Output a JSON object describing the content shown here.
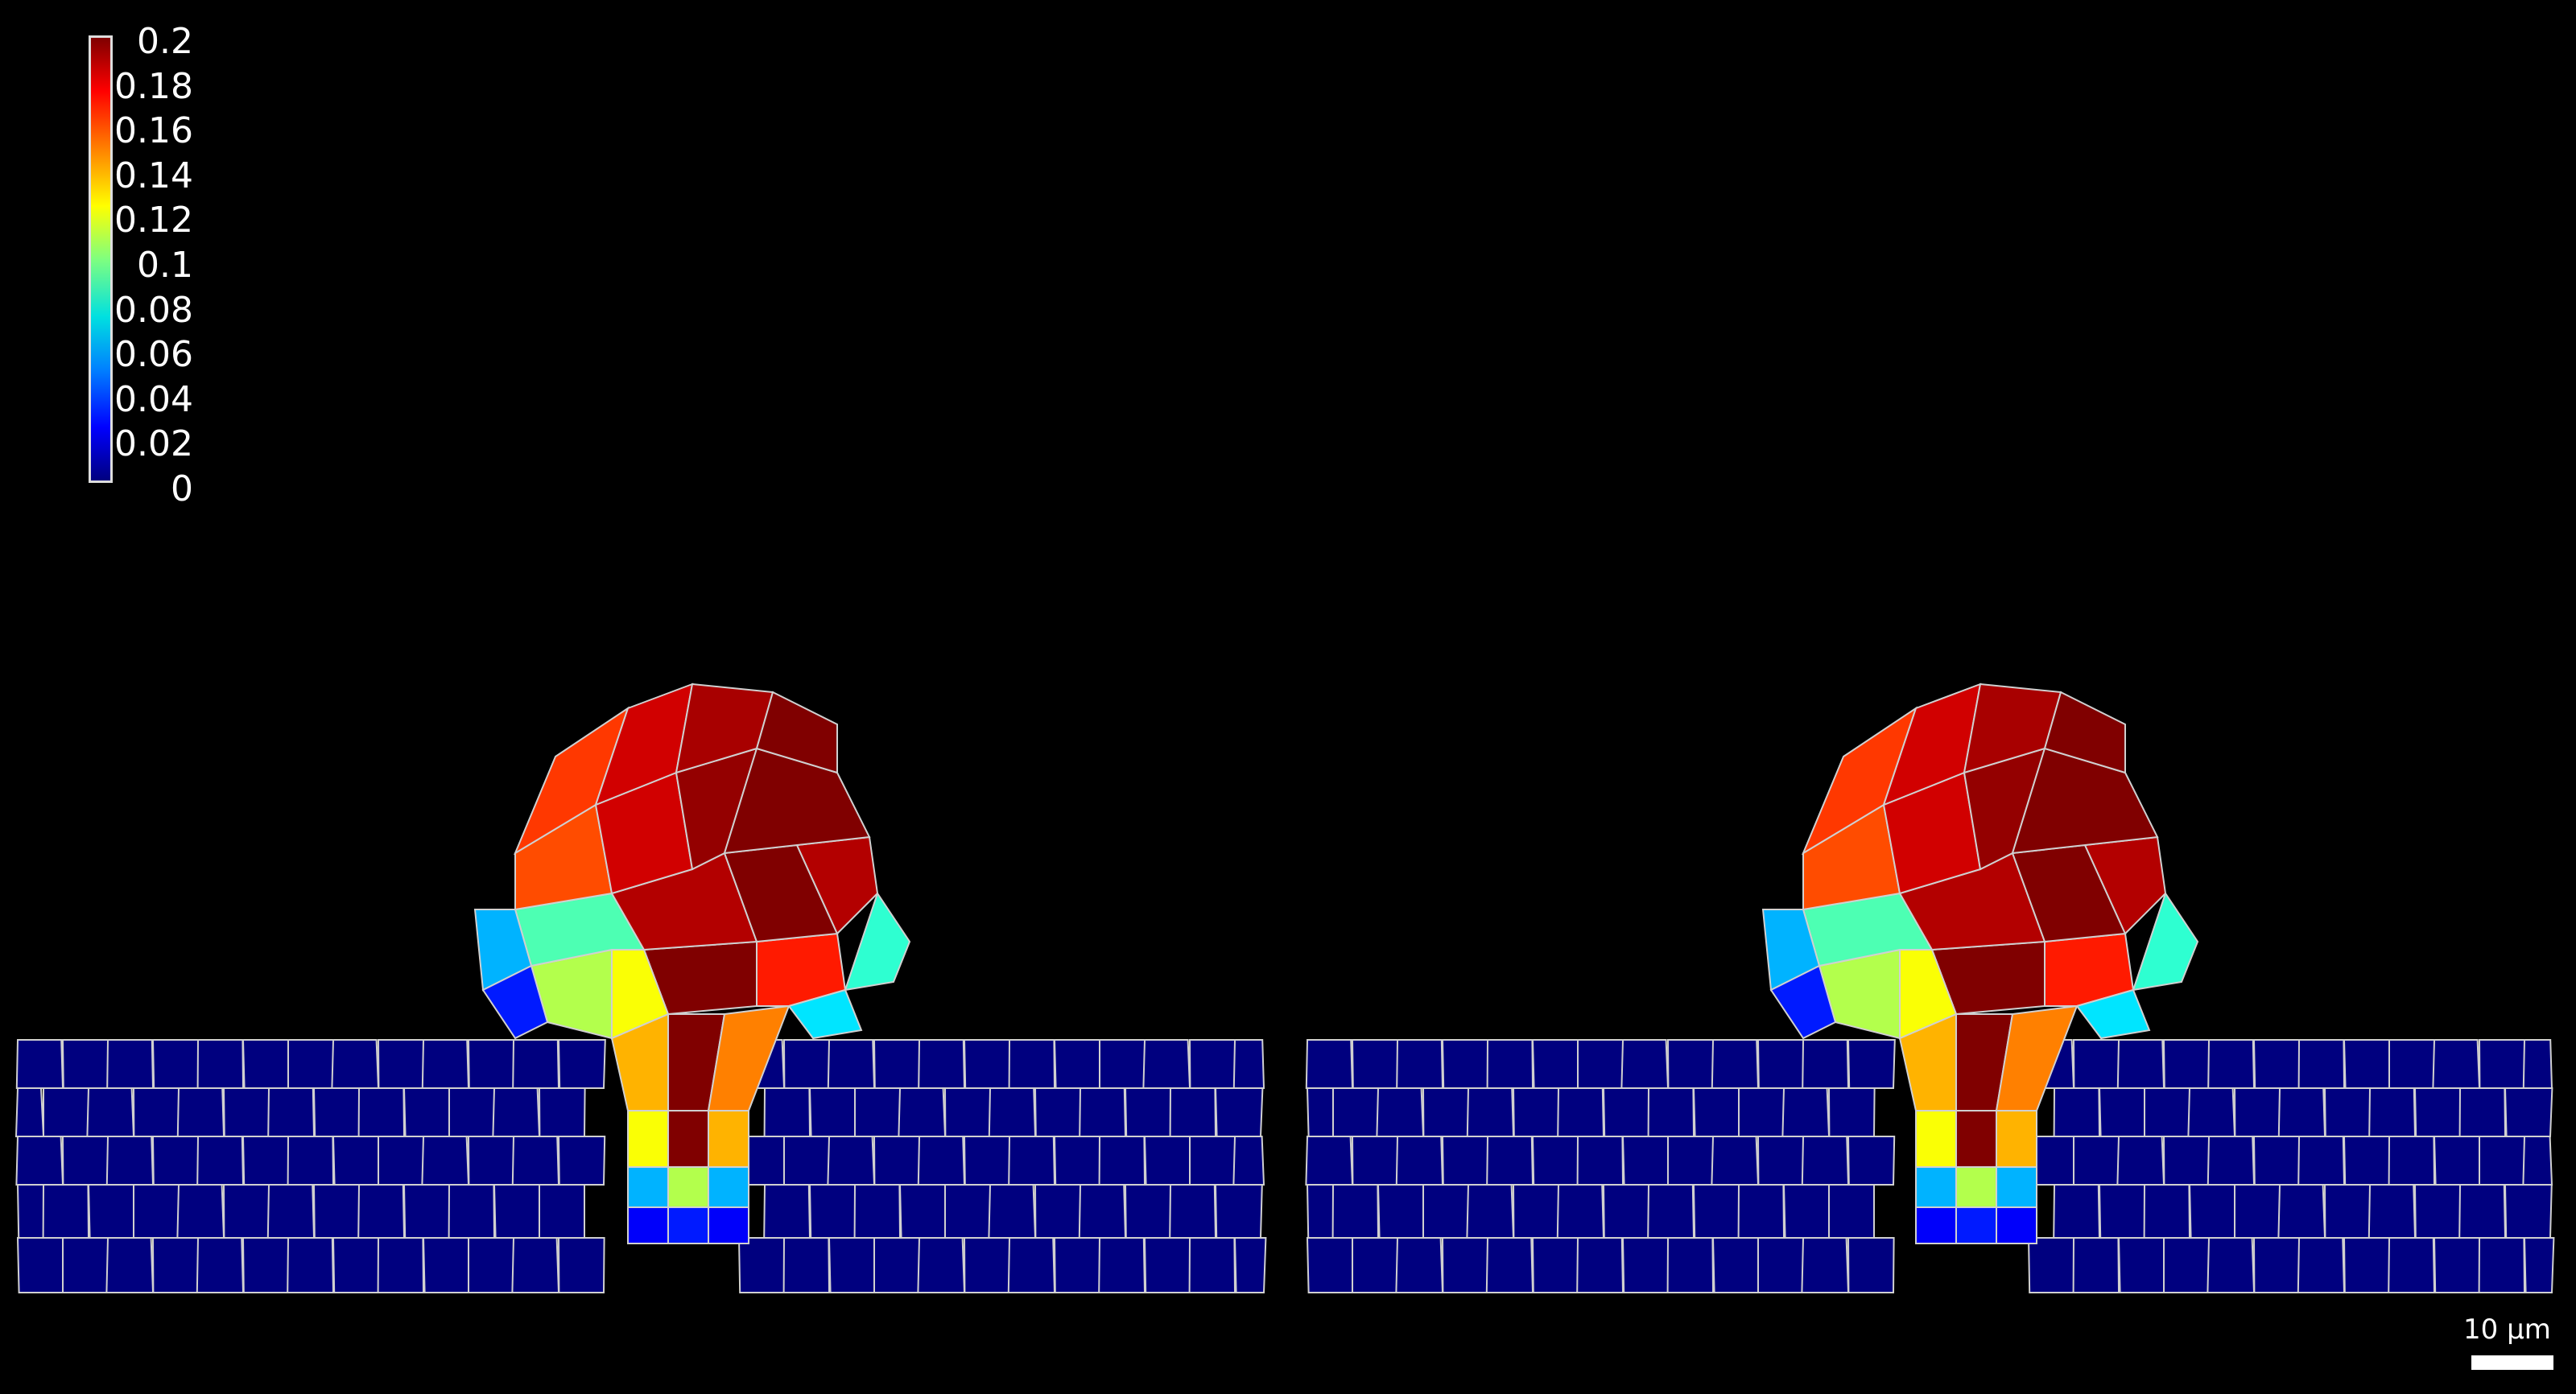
{
  "colorbar": {
    "ticks": [
      "0.2",
      "0.18",
      "0.16",
      "0.14",
      "0.12",
      "0.1",
      "0.08",
      "0.06",
      "0.04",
      "0.02",
      "0"
    ],
    "range": [
      0,
      0.2
    ],
    "colormap": "jet"
  },
  "scale_bar": {
    "label": "10 µm"
  },
  "colors": {
    "background": "#000000",
    "tissue_base": "#00007f",
    "edge": "#d0d0d0"
  },
  "panels": [
    {
      "name": "left-panel"
    },
    {
      "name": "right-panel"
    }
  ]
}
